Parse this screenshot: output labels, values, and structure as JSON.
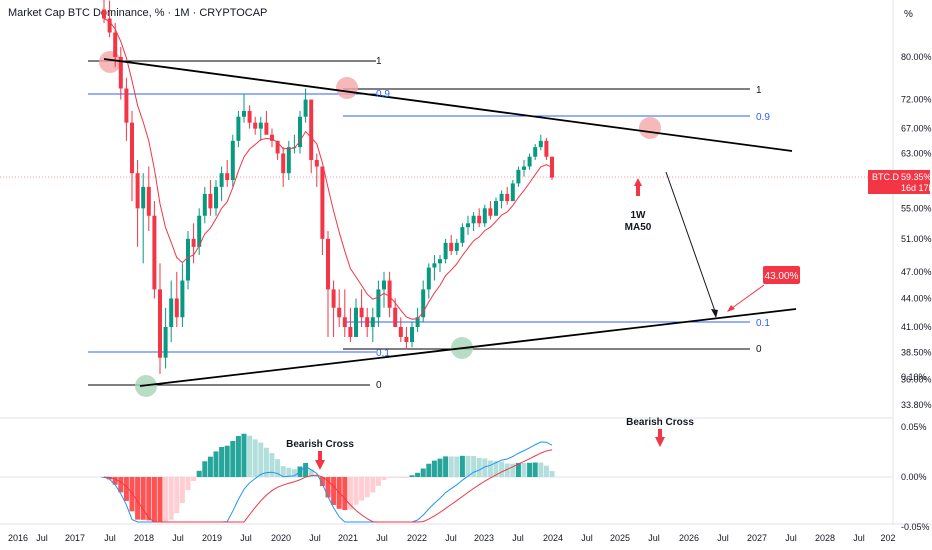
{
  "header": {
    "title": "Market Cap BTC Dominance, % · 1M · CRYPTOCAP",
    "currency": "%"
  },
  "price_tag": {
    "symbol": "BTC.D",
    "value": "59.35%",
    "countdown": "16d 17h",
    "color": "#f23645"
  },
  "colors": {
    "up": "#089981",
    "down": "#f23645",
    "ma": "#f23645",
    "fib": "#2962ff",
    "trend": "#000000",
    "macd": "#2196f3",
    "signal": "#f23645",
    "hist_up": "#26a69a",
    "hist_up_light": "#b2dfdb",
    "hist_down": "#ff5252",
    "hist_down_light": "#ffcdd2"
  },
  "annotations": {
    "ma_label_1": "1W",
    "ma_label_2": "MA50",
    "target_label": "43.00%",
    "bearish_cross_1": "Bearish Cross",
    "bearish_cross_2": "Bearish Cross",
    "fib_top_left": "1",
    "fib_top_right": "1",
    "fib_09_left": "0.9",
    "fib_09_right": "0.9",
    "fib_01_left": "0.1",
    "fib_01_right": "0.1",
    "fib_0_left": "0",
    "fib_0_right": "0"
  },
  "chart_data": [
    {
      "type": "candlestick",
      "title": "Market Cap BTC Dominance, % · 1M · CRYPTOCAP",
      "yscale": "log",
      "y_ticks": [
        "80.00%",
        "72.00%",
        "67.00%",
        "63.00%",
        "55.00%",
        "51.00%",
        "47.00%",
        "44.00%",
        "41.00%",
        "38.50%",
        "36.00%",
        "33.80%"
      ],
      "x_ticks": [
        "2016",
        "Jul",
        "2017",
        "Jul",
        "2018",
        "Jul",
        "2019",
        "Jul",
        "2020",
        "Jul",
        "2021",
        "Jul",
        "2022",
        "Jul",
        "2023",
        "Jul",
        "2024",
        "Jul",
        "2025",
        "Jul",
        "2026",
        "Jul",
        "2027",
        "Jul",
        "2028",
        "Jul",
        "202"
      ],
      "series": [
        {
          "values": [
            [
              90,
              95,
              87,
              88
            ],
            [
              88,
              92,
              84,
              85
            ],
            [
              85,
              87,
              78,
              80
            ],
            [
              80,
              82,
              72,
              74
            ],
            [
              74,
              76,
              65,
              68
            ],
            [
              68,
              70,
              56,
              60
            ],
            [
              60,
              62,
              50,
              55
            ],
            [
              55,
              60,
              48,
              58
            ],
            [
              58,
              61,
              52,
              54
            ],
            [
              54,
              56,
              44,
              45
            ],
            [
              45,
              48,
              36.5,
              38
            ],
            [
              38,
              43,
              37,
              41
            ],
            [
              41,
              46,
              39.5,
              44
            ],
            [
              44,
              47,
              41,
              42
            ],
            [
              42,
              48,
              41,
              46
            ],
            [
              46,
              52,
              45,
              51
            ],
            [
              51,
              53,
              48,
              50
            ],
            [
              50,
              55,
              49,
              54
            ],
            [
              54,
              58,
              53,
              57
            ],
            [
              57,
              59,
              54,
              55
            ],
            [
              55,
              59,
              54,
              58
            ],
            [
              58,
              61,
              56,
              60
            ],
            [
              60,
              62,
              58,
              59
            ],
            [
              59,
              66,
              58,
              65
            ],
            [
              65,
              70,
              64,
              69
            ],
            [
              69,
              73,
              68,
              70
            ],
            [
              70,
              71,
              67,
              68
            ],
            [
              68,
              69,
              66,
              67
            ],
            [
              67,
              69,
              65,
              68
            ],
            [
              68,
              70,
              66,
              66
            ],
            [
              66,
              67,
              64,
              65
            ],
            [
              65,
              65,
              62,
              63
            ],
            [
              63,
              64,
              58,
              60
            ],
            [
              60,
              65,
              59,
              64
            ],
            [
              64,
              66,
              63,
              64
            ],
            [
              64,
              70,
              63,
              69
            ],
            [
              69,
              74,
              68,
              72
            ],
            [
              72,
              72,
              60,
              62
            ],
            [
              62,
              63,
              58,
              61
            ],
            [
              61,
              61,
              49,
              51
            ],
            [
              51,
              52,
              40,
              45
            ],
            [
              45,
              46,
              40,
              43
            ],
            [
              43,
              45,
              41,
              42
            ],
            [
              42,
              45,
              40,
              41
            ],
            [
              41,
              43,
              39.5,
              40
            ],
            [
              40,
              44,
              40,
              43
            ],
            [
              43,
              45,
              41,
              42
            ],
            [
              42,
              43,
              40,
              41
            ],
            [
              41,
              43,
              39.5,
              42
            ],
            [
              42,
              46,
              41,
              45
            ],
            [
              45,
              47,
              43,
              46
            ],
            [
              46,
              47,
              42,
              43
            ],
            [
              43,
              44,
              41,
              41
            ],
            [
              41,
              42,
              39.5,
              40
            ],
            [
              40,
              41,
              38.8,
              39.5
            ],
            [
              39.5,
              41.5,
              39,
              41
            ],
            [
              41,
              43,
              40.5,
              42
            ],
            [
              42,
              46,
              41.5,
              45
            ],
            [
              45,
              48,
              44,
              47.5
            ],
            [
              47.5,
              49,
              46,
              48
            ],
            [
              48,
              49,
              47,
              48.5
            ],
            [
              48.5,
              51,
              48,
              50.5
            ],
            [
              50.5,
              51.5,
              49,
              49.5
            ],
            [
              49.5,
              51,
              49,
              50.5
            ],
            [
              50.5,
              53,
              50,
              52.5
            ],
            [
              52.5,
              54,
              51.5,
              53
            ],
            [
              53,
              54.5,
              52,
              54
            ],
            [
              54,
              55,
              52.5,
              53
            ],
            [
              53,
              55.5,
              52.5,
              55
            ],
            [
              55,
              56,
              53.5,
              54
            ],
            [
              54,
              56.5,
              54,
              56
            ],
            [
              56,
              57.5,
              55,
              57
            ],
            [
              57,
              58,
              55.5,
              56
            ],
            [
              56,
              59,
              56,
              58.5
            ],
            [
              58.5,
              61,
              58,
              60.5
            ],
            [
              60.5,
              62,
              59.5,
              61
            ],
            [
              61,
              63,
              60.5,
              62.5
            ],
            [
              62.5,
              64.5,
              62,
              64
            ],
            [
              64,
              66,
              63.5,
              65
            ],
            [
              65,
              65.5,
              62,
              62.5
            ],
            [
              62.5,
              62.5,
              59,
              59.35
            ]
          ]
        }
      ]
    },
    {
      "type": "histogram",
      "y_ticks": [
        "0.10%",
        "0.05%",
        "0.00%",
        "-0.05%"
      ],
      "series": [
        {
          "name": "MACD"
        },
        {
          "name": "Signal"
        }
      ]
    }
  ]
}
